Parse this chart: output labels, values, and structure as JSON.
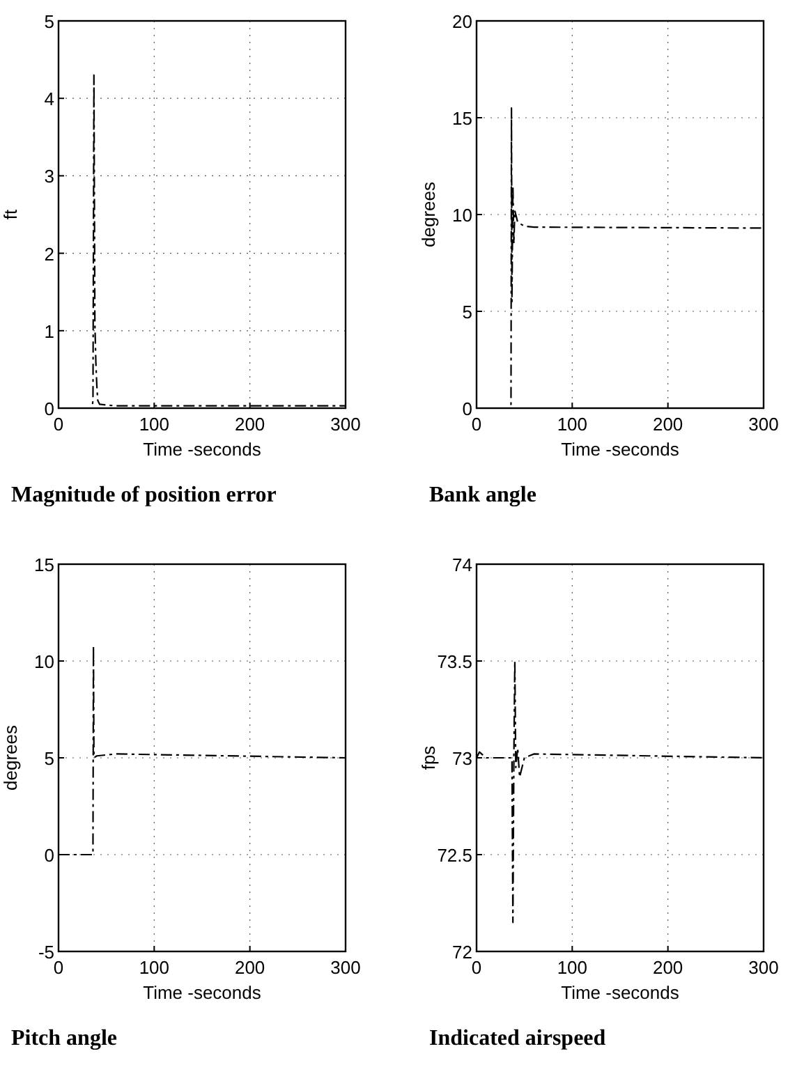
{
  "chart_data": [
    {
      "type": "line",
      "title": "Magnitude of position error",
      "xlabel": "Time -seconds",
      "ylabel": "ft",
      "color": "#000000",
      "line_style": "dashed",
      "grid": true,
      "xlim": [
        0,
        300
      ],
      "ylim": [
        0,
        5
      ],
      "xticks": [
        0,
        100,
        200,
        300
      ],
      "yticks": [
        0,
        1,
        2,
        3,
        4,
        5
      ],
      "x": [
        0,
        35,
        36,
        37,
        38,
        39,
        40,
        41,
        43,
        50,
        60,
        300
      ],
      "values": [
        0,
        0,
        0.1,
        4.3,
        1.1,
        0.6,
        0.3,
        0.1,
        0.05,
        0.04,
        0.03,
        0.03
      ]
    },
    {
      "type": "line",
      "title": "Bank angle",
      "xlabel": "Time -seconds",
      "ylabel": "degrees",
      "color": "#000000",
      "line_style": "dashed",
      "grid": true,
      "xlim": [
        0,
        300
      ],
      "ylim": [
        0,
        20
      ],
      "xticks": [
        0,
        100,
        200,
        300
      ],
      "yticks": [
        0,
        5,
        10,
        15,
        20
      ],
      "x": [
        0,
        36,
        36.5,
        37,
        38,
        39,
        40,
        43,
        50,
        60,
        300
      ],
      "values": [
        0,
        0,
        15.5,
        5.5,
        11.5,
        8.5,
        10.2,
        9.6,
        9.4,
        9.35,
        9.3
      ]
    },
    {
      "type": "line",
      "title": "Pitch angle",
      "xlabel": "Time -seconds",
      "ylabel": "degrees",
      "color": "#000000",
      "line_style": "dashed",
      "grid": true,
      "xlim": [
        0,
        300
      ],
      "ylim": [
        -5,
        15
      ],
      "xticks": [
        0,
        100,
        200,
        300
      ],
      "yticks": [
        -5,
        0,
        5,
        10,
        15
      ],
      "x": [
        0,
        36,
        36.5,
        37,
        40,
        60,
        300
      ],
      "values": [
        0,
        0,
        10.8,
        5,
        5.1,
        5.2,
        5
      ]
    },
    {
      "type": "line",
      "title": "Indicated airspeed",
      "xlabel": "Time -seconds",
      "ylabel": "fps",
      "color": "#000000",
      "line_style": "dashed",
      "grid": true,
      "xlim": [
        0,
        300
      ],
      "ylim": [
        72,
        74
      ],
      "xticks": [
        0,
        100,
        200,
        300
      ],
      "yticks": [
        72,
        72.5,
        73,
        73.5,
        74
      ],
      "x": [
        0,
        3,
        10,
        37,
        38,
        39,
        40,
        41,
        43,
        45,
        50,
        60,
        300
      ],
      "values": [
        73,
        73.03,
        73,
        73,
        72.15,
        73,
        73.5,
        72.95,
        73.05,
        72.9,
        73,
        73.02,
        73
      ]
    }
  ]
}
